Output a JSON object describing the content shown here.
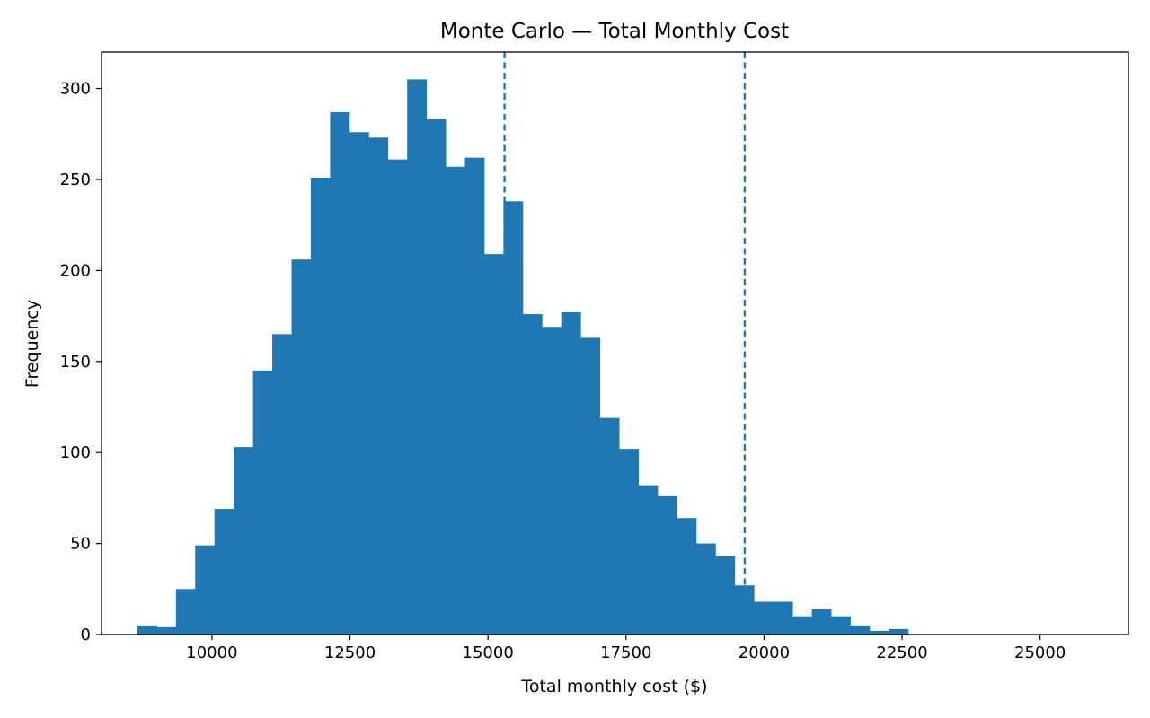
{
  "chart_data": {
    "type": "histogram",
    "title": "Monte Carlo — Total Monthly Cost",
    "xlabel": "Total monthly cost ($)",
    "ylabel": "Frequency",
    "xlim": [
      8000,
      26600
    ],
    "ylim": [
      0,
      320
    ],
    "xticks": [
      10000,
      12500,
      15000,
      17500,
      20000,
      22500,
      25000
    ],
    "yticks": [
      0,
      50,
      100,
      150,
      200,
      250,
      300
    ],
    "bin_start": 8650,
    "bin_width": 349,
    "counts": [
      5,
      4,
      25,
      49,
      69,
      103,
      145,
      165,
      206,
      251,
      287,
      276,
      273,
      261,
      305,
      283,
      257,
      262,
      209,
      238,
      176,
      169,
      177,
      163,
      119,
      102,
      82,
      76,
      64,
      50,
      43,
      27,
      18,
      18,
      10,
      14,
      10,
      5,
      2,
      3
    ],
    "reference_lines": [
      {
        "x": 15300
      },
      {
        "x": 19650
      }
    ],
    "bar_color": "#1f77b4",
    "line_color": "#1f77b4",
    "grid": false
  }
}
